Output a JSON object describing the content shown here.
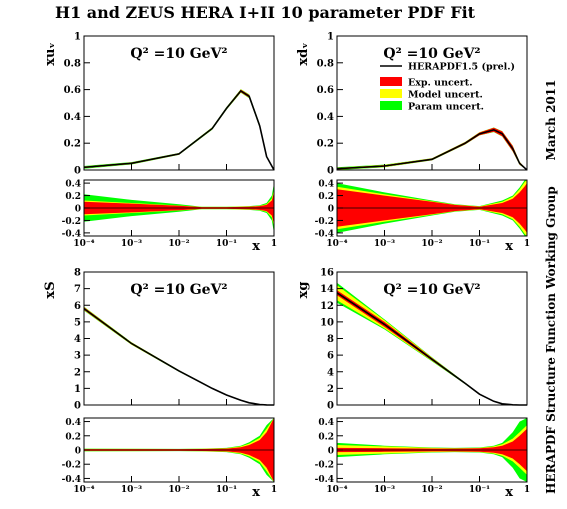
{
  "title": "H1 and ZEUS HERA I+II 10 parameter PDF Fit",
  "side_text_top": "March 2011",
  "side_text_bottom": "HERAPDF Structure Function Working Group",
  "q2_label": "Q² =10 GeV²",
  "legend": {
    "central": "HERAPDF1.5 (prel.)",
    "exp": "Exp. uncert.",
    "model": "Model uncert.",
    "param": "Param uncert."
  },
  "colors": {
    "exp": "#ff0000",
    "model": "#ffff00",
    "param": "#00ff00",
    "central": "#000000"
  },
  "x_tick_labels": [
    "10⁻⁴",
    "10⁻³",
    "10⁻²",
    "10⁻¹",
    "1"
  ],
  "chart_data": [
    {
      "type": "area",
      "ylabel": "xuᵥ",
      "xlabel": "",
      "xscale": "log",
      "xlim": [
        0.0001,
        1
      ],
      "ylim": [
        0,
        1
      ],
      "yticks": [
        "0",
        "0.2",
        "0.4",
        "0.6",
        "0.8",
        "1"
      ],
      "x": [
        0.0001,
        0.001,
        0.01,
        0.05,
        0.1,
        0.2,
        0.3,
        0.5,
        0.7,
        1
      ],
      "central": [
        0.02,
        0.05,
        0.12,
        0.31,
        0.46,
        0.59,
        0.55,
        0.33,
        0.1,
        0.0
      ],
      "band_exp": [
        0.005,
        0.005,
        0.005,
        0.006,
        0.007,
        0.01,
        0.01,
        0.01,
        0.005,
        0.0
      ],
      "band_model": [
        0.007,
        0.007,
        0.006,
        0.008,
        0.009,
        0.012,
        0.012,
        0.012,
        0.006,
        0.0
      ],
      "band_param": [
        0.01,
        0.009,
        0.007,
        0.009,
        0.01,
        0.014,
        0.014,
        0.014,
        0.007,
        0.0
      ]
    },
    {
      "type": "area",
      "ylabel": "xdᵥ",
      "xlabel": "",
      "xscale": "log",
      "xlim": [
        0.0001,
        1
      ],
      "ylim": [
        0,
        1
      ],
      "yticks": [
        "0",
        "0.2",
        "0.4",
        "0.6",
        "0.8",
        "1"
      ],
      "x": [
        0.0001,
        0.001,
        0.01,
        0.05,
        0.1,
        0.2,
        0.3,
        0.5,
        0.7,
        1
      ],
      "central": [
        0.01,
        0.03,
        0.08,
        0.2,
        0.27,
        0.3,
        0.27,
        0.16,
        0.05,
        0.0
      ],
      "band_exp": [
        0.005,
        0.006,
        0.006,
        0.008,
        0.01,
        0.015,
        0.018,
        0.02,
        0.01,
        0.0
      ],
      "band_model": [
        0.007,
        0.008,
        0.007,
        0.009,
        0.011,
        0.016,
        0.019,
        0.021,
        0.011,
        0.0
      ],
      "band_param": [
        0.01,
        0.01,
        0.008,
        0.01,
        0.012,
        0.017,
        0.02,
        0.022,
        0.012,
        0.0
      ]
    },
    {
      "type": "area",
      "ylabel": "xS",
      "xlabel": "x",
      "xscale": "log",
      "xlim": [
        0.0001,
        1
      ],
      "ylim": [
        0,
        8
      ],
      "yticks": [
        "0",
        "1",
        "2",
        "3",
        "4",
        "5",
        "6",
        "7",
        "8"
      ],
      "x": [
        0.0001,
        0.001,
        0.01,
        0.05,
        0.1,
        0.2,
        0.3,
        0.5,
        0.7,
        1
      ],
      "central": [
        5.8,
        3.7,
        2.05,
        1.0,
        0.6,
        0.28,
        0.13,
        0.03,
        0.005,
        0.0
      ],
      "band_exp": [
        0.08,
        0.05,
        0.03,
        0.02,
        0.015,
        0.01,
        0.008,
        0.004,
        0.001,
        0.0
      ],
      "band_model": [
        0.1,
        0.07,
        0.04,
        0.025,
        0.018,
        0.012,
        0.009,
        0.005,
        0.002,
        0.0
      ],
      "band_param": [
        0.12,
        0.08,
        0.045,
        0.028,
        0.02,
        0.013,
        0.01,
        0.006,
        0.002,
        0.0
      ]
    },
    {
      "type": "area",
      "ylabel": "xg",
      "xlabel": "x",
      "xscale": "log",
      "xlim": [
        0.0001,
        1
      ],
      "ylim": [
        0,
        16
      ],
      "yticks": [
        "0",
        "2",
        "4",
        "6",
        "8",
        "10",
        "12",
        "14",
        "16"
      ],
      "x": [
        0.0001,
        0.001,
        0.01,
        0.05,
        0.1,
        0.2,
        0.3,
        0.5,
        0.7,
        1
      ],
      "central": [
        13.5,
        9.7,
        5.5,
        2.6,
        1.3,
        0.45,
        0.15,
        0.03,
        0.005,
        0.0
      ],
      "band_exp": [
        0.3,
        0.3,
        0.15,
        0.06,
        0.04,
        0.03,
        0.02,
        0.006,
        0.001,
        0.0
      ],
      "band_model": [
        0.9,
        0.5,
        0.2,
        0.08,
        0.05,
        0.035,
        0.025,
        0.008,
        0.002,
        0.0
      ],
      "band_param": [
        1.2,
        0.6,
        0.25,
        0.1,
        0.06,
        0.04,
        0.03,
        0.01,
        0.002,
        0.0
      ]
    },
    {
      "type": "area",
      "ylabel": "",
      "xlabel": "x",
      "xscale": "log",
      "xlim": [
        0.0001,
        1
      ],
      "ylim": [
        -0.45,
        0.45
      ],
      "yticks": [
        "-0.4",
        "-0.2",
        "0",
        "0.2",
        "0.4"
      ],
      "x": [
        0.0001,
        0.001,
        0.01,
        0.03,
        0.1,
        0.3,
        0.5,
        0.7,
        0.9,
        1
      ],
      "band_exp": [
        0.1,
        0.07,
        0.035,
        0.015,
        0.015,
        0.02,
        0.03,
        0.05,
        0.12,
        0.25
      ],
      "band_model": [
        0.12,
        0.08,
        0.04,
        0.017,
        0.017,
        0.025,
        0.035,
        0.06,
        0.15,
        0.3
      ],
      "band_param": [
        0.22,
        0.13,
        0.06,
        0.02,
        0.02,
        0.03,
        0.045,
        0.08,
        0.2,
        0.4
      ]
    },
    {
      "type": "area",
      "ylabel": "",
      "xlabel": "x",
      "xscale": "log",
      "xlim": [
        0.0001,
        1
      ],
      "ylim": [
        -0.45,
        0.45
      ],
      "yticks": [
        "-0.4",
        "-0.2",
        "0",
        "0.2",
        "0.4"
      ],
      "x": [
        0.0001,
        0.001,
        0.01,
        0.03,
        0.1,
        0.3,
        0.5,
        0.7,
        0.9,
        1
      ],
      "band_exp": [
        0.3,
        0.2,
        0.1,
        0.05,
        0.02,
        0.08,
        0.15,
        0.25,
        0.35,
        0.4
      ],
      "band_model": [
        0.34,
        0.22,
        0.11,
        0.055,
        0.025,
        0.1,
        0.18,
        0.3,
        0.42,
        0.45
      ],
      "band_param": [
        0.4,
        0.25,
        0.12,
        0.06,
        0.03,
        0.12,
        0.2,
        0.33,
        0.45,
        0.45
      ]
    },
    {
      "type": "area",
      "ylabel": "",
      "xlabel": "x",
      "xscale": "log",
      "xlim": [
        0.0001,
        1
      ],
      "ylim": [
        -0.45,
        0.45
      ],
      "yticks": [
        "-0.4",
        "-0.2",
        "0",
        "0.2",
        "0.4"
      ],
      "x": [
        0.0001,
        0.001,
        0.01,
        0.03,
        0.1,
        0.2,
        0.3,
        0.5,
        0.7,
        1
      ],
      "band_exp": [
        0.012,
        0.012,
        0.012,
        0.014,
        0.02,
        0.04,
        0.07,
        0.14,
        0.25,
        0.45
      ],
      "band_model": [
        0.016,
        0.015,
        0.014,
        0.017,
        0.025,
        0.05,
        0.09,
        0.17,
        0.3,
        0.45
      ],
      "band_param": [
        0.02,
        0.018,
        0.016,
        0.02,
        0.03,
        0.06,
        0.11,
        0.2,
        0.35,
        0.45
      ]
    },
    {
      "type": "area",
      "ylabel": "",
      "xlabel": "x",
      "xscale": "log",
      "xlim": [
        0.0001,
        1
      ],
      "ylim": [
        -0.45,
        0.45
      ],
      "yticks": [
        "-0.4",
        "-0.2",
        "0",
        "0.2",
        "0.4"
      ],
      "x": [
        0.0001,
        0.001,
        0.01,
        0.03,
        0.1,
        0.2,
        0.3,
        0.5,
        0.7,
        1
      ],
      "band_exp": [
        0.03,
        0.025,
        0.02,
        0.02,
        0.025,
        0.04,
        0.06,
        0.12,
        0.2,
        0.3
      ],
      "band_model": [
        0.07,
        0.05,
        0.03,
        0.025,
        0.03,
        0.05,
        0.08,
        0.16,
        0.25,
        0.35
      ],
      "band_param": [
        0.1,
        0.06,
        0.035,
        0.03,
        0.035,
        0.06,
        0.1,
        0.25,
        0.4,
        0.45
      ]
    }
  ]
}
